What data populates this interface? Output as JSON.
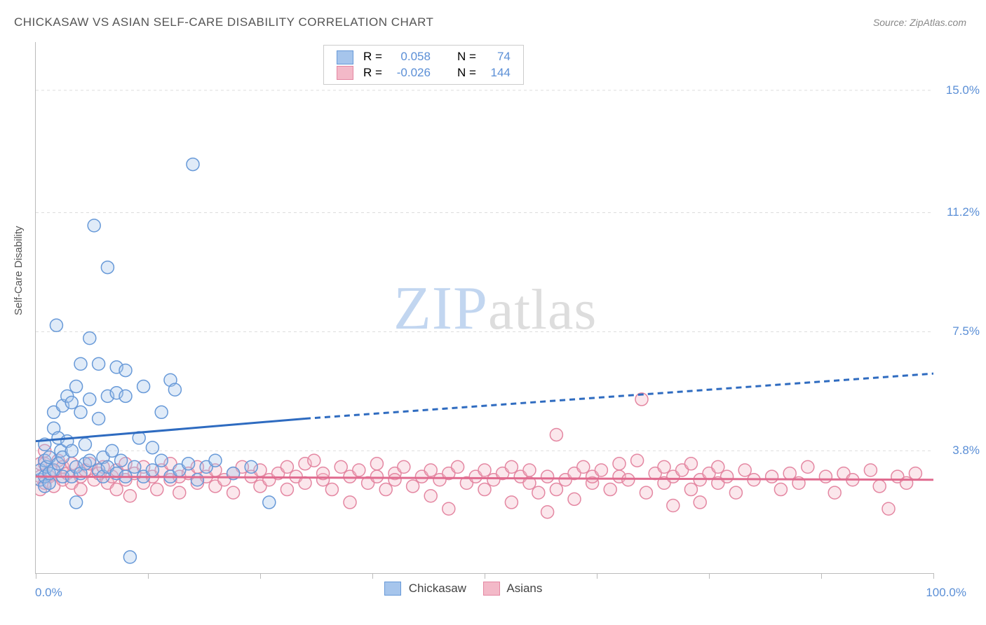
{
  "title": "CHICKASAW VS ASIAN SELF-CARE DISABILITY CORRELATION CHART",
  "source": "Source: ZipAtlas.com",
  "ylabel": "Self-Care Disability",
  "watermark": {
    "part1": "ZIP",
    "part2": "atlas"
  },
  "chart": {
    "type": "scatter",
    "background_color": "#ffffff",
    "grid_color": "#dddddd",
    "axis_color": "#bbbbbb",
    "tick_label_color": "#5b8fd6",
    "xlim": [
      0,
      100
    ],
    "ylim": [
      0,
      16.5
    ],
    "xticks": [
      0,
      12.5,
      25,
      37.5,
      50,
      62.5,
      75,
      87.5,
      100
    ],
    "xtick_labels": {
      "0": "0.0%",
      "100": "100.0%"
    },
    "ygrid": [
      3.8,
      7.5,
      11.2,
      15.0
    ],
    "ytick_labels": [
      "3.8%",
      "7.5%",
      "11.2%",
      "15.0%"
    ],
    "marker_radius": 9,
    "marker_stroke_width": 1.5,
    "marker_fill_opacity": 0.35,
    "series": [
      {
        "name": "Chickasaw",
        "label": "Chickasaw",
        "fill_color": "#a6c5ec",
        "stroke_color": "#6799d8",
        "R": "0.058",
        "N": "74",
        "trend": {
          "solid": {
            "x1": 0,
            "y1": 4.1,
            "x2": 30,
            "y2": 4.8
          },
          "dashed": {
            "x1": 30,
            "y1": 4.8,
            "x2": 100,
            "y2": 6.2
          },
          "color": "#2e6bc0",
          "width": 3,
          "dash": "8 6"
        },
        "points": [
          [
            0.5,
            2.9
          ],
          [
            0.5,
            3.2
          ],
          [
            1.0,
            2.7
          ],
          [
            1.0,
            3.0
          ],
          [
            1.0,
            3.5
          ],
          [
            1.0,
            4.0
          ],
          [
            1.2,
            3.3
          ],
          [
            1.5,
            2.8
          ],
          [
            1.5,
            3.1
          ],
          [
            1.5,
            3.6
          ],
          [
            2.0,
            3.2
          ],
          [
            2.0,
            4.5
          ],
          [
            2.0,
            5.0
          ],
          [
            2.3,
            7.7
          ],
          [
            2.5,
            3.4
          ],
          [
            2.5,
            4.2
          ],
          [
            2.8,
            3.8
          ],
          [
            3.0,
            3.0
          ],
          [
            3.0,
            3.6
          ],
          [
            3.0,
            5.2
          ],
          [
            3.5,
            4.1
          ],
          [
            3.5,
            5.5
          ],
          [
            4.0,
            3.0
          ],
          [
            4.0,
            3.8
          ],
          [
            4.0,
            5.3
          ],
          [
            4.5,
            2.2
          ],
          [
            4.5,
            3.3
          ],
          [
            4.5,
            5.8
          ],
          [
            5.0,
            3.1
          ],
          [
            5.0,
            5.0
          ],
          [
            5.0,
            6.5
          ],
          [
            5.5,
            3.4
          ],
          [
            5.5,
            4.0
          ],
          [
            6.0,
            3.5
          ],
          [
            6.0,
            5.4
          ],
          [
            6.0,
            7.3
          ],
          [
            6.5,
            10.8
          ],
          [
            7.0,
            3.2
          ],
          [
            7.0,
            4.8
          ],
          [
            7.0,
            6.5
          ],
          [
            7.5,
            3.0
          ],
          [
            7.5,
            3.6
          ],
          [
            8.0,
            3.3
          ],
          [
            8.0,
            5.5
          ],
          [
            8.0,
            9.5
          ],
          [
            8.5,
            3.8
          ],
          [
            9.0,
            3.1
          ],
          [
            9.0,
            5.6
          ],
          [
            9.0,
            6.4
          ],
          [
            9.5,
            3.5
          ],
          [
            10.0,
            3.0
          ],
          [
            10.0,
            5.5
          ],
          [
            10.0,
            6.3
          ],
          [
            10.5,
            0.5
          ],
          [
            11.0,
            3.3
          ],
          [
            11.5,
            4.2
          ],
          [
            12.0,
            3.0
          ],
          [
            12.0,
            5.8
          ],
          [
            13.0,
            3.2
          ],
          [
            13.0,
            3.9
          ],
          [
            14.0,
            3.5
          ],
          [
            14.0,
            5.0
          ],
          [
            15.0,
            3.0
          ],
          [
            15.0,
            6.0
          ],
          [
            15.5,
            5.7
          ],
          [
            16.0,
            3.2
          ],
          [
            17.0,
            3.4
          ],
          [
            17.5,
            12.7
          ],
          [
            18.0,
            2.9
          ],
          [
            19.0,
            3.3
          ],
          [
            20.0,
            3.5
          ],
          [
            22.0,
            3.1
          ],
          [
            24.0,
            3.3
          ],
          [
            26.0,
            2.2
          ]
        ]
      },
      {
        "name": "Asians",
        "label": "Asians",
        "fill_color": "#f3b9c8",
        "stroke_color": "#e487a2",
        "R": "-0.026",
        "N": "144",
        "trend": {
          "solid": {
            "x1": 0,
            "y1": 3.0,
            "x2": 100,
            "y2": 2.9
          },
          "color": "#e06b8f",
          "width": 3
        },
        "points": [
          [
            0.5,
            3.0
          ],
          [
            0.5,
            3.4
          ],
          [
            0.5,
            2.6
          ],
          [
            1.0,
            3.4
          ],
          [
            1.0,
            2.8
          ],
          [
            1.0,
            3.8
          ],
          [
            1.5,
            3.0
          ],
          [
            2.0,
            3.2
          ],
          [
            2.0,
            2.7
          ],
          [
            2.5,
            3.5
          ],
          [
            3.0,
            2.9
          ],
          [
            3.0,
            3.3
          ],
          [
            3.5,
            3.1
          ],
          [
            4.0,
            2.8
          ],
          [
            4.0,
            3.4
          ],
          [
            5.0,
            3.0
          ],
          [
            5.0,
            2.6
          ],
          [
            5.5,
            3.2
          ],
          [
            6.0,
            3.4
          ],
          [
            6.5,
            2.9
          ],
          [
            7.0,
            3.1
          ],
          [
            7.5,
            3.3
          ],
          [
            8.0,
            2.8
          ],
          [
            8.5,
            3.0
          ],
          [
            9.0,
            3.2
          ],
          [
            9.0,
            2.6
          ],
          [
            10.0,
            3.4
          ],
          [
            10.0,
            2.9
          ],
          [
            10.5,
            2.4
          ],
          [
            11.0,
            3.1
          ],
          [
            12.0,
            2.8
          ],
          [
            12.0,
            3.3
          ],
          [
            13.0,
            3.0
          ],
          [
            13.5,
            2.6
          ],
          [
            14.0,
            3.2
          ],
          [
            15.0,
            2.9
          ],
          [
            15.0,
            3.4
          ],
          [
            16.0,
            3.0
          ],
          [
            16.0,
            2.5
          ],
          [
            17.0,
            3.1
          ],
          [
            18.0,
            2.8
          ],
          [
            18.0,
            3.3
          ],
          [
            19.0,
            3.0
          ],
          [
            20.0,
            2.7
          ],
          [
            20.0,
            3.2
          ],
          [
            21.0,
            2.9
          ],
          [
            22.0,
            3.1
          ],
          [
            22.0,
            2.5
          ],
          [
            23.0,
            3.3
          ],
          [
            24.0,
            3.0
          ],
          [
            25.0,
            2.7
          ],
          [
            25.0,
            3.2
          ],
          [
            26.0,
            2.9
          ],
          [
            27.0,
            3.1
          ],
          [
            28.0,
            2.6
          ],
          [
            28.0,
            3.3
          ],
          [
            29.0,
            3.0
          ],
          [
            30.0,
            2.8
          ],
          [
            30.0,
            3.4
          ],
          [
            31.0,
            3.5
          ],
          [
            32.0,
            2.9
          ],
          [
            32.0,
            3.1
          ],
          [
            33.0,
            2.6
          ],
          [
            34.0,
            3.3
          ],
          [
            35.0,
            3.0
          ],
          [
            35.0,
            2.2
          ],
          [
            36.0,
            3.2
          ],
          [
            37.0,
            2.8
          ],
          [
            38.0,
            3.0
          ],
          [
            38.0,
            3.4
          ],
          [
            39.0,
            2.6
          ],
          [
            40.0,
            3.1
          ],
          [
            40.0,
            2.9
          ],
          [
            41.0,
            3.3
          ],
          [
            42.0,
            2.7
          ],
          [
            43.0,
            3.0
          ],
          [
            44.0,
            2.4
          ],
          [
            44.0,
            3.2
          ],
          [
            45.0,
            2.9
          ],
          [
            46.0,
            3.1
          ],
          [
            46.0,
            2.0
          ],
          [
            47.0,
            3.3
          ],
          [
            48.0,
            2.8
          ],
          [
            49.0,
            3.0
          ],
          [
            50.0,
            2.6
          ],
          [
            50.0,
            3.2
          ],
          [
            51.0,
            2.9
          ],
          [
            52.0,
            3.1
          ],
          [
            53.0,
            2.2
          ],
          [
            53.0,
            3.3
          ],
          [
            54.0,
            3.0
          ],
          [
            55.0,
            2.8
          ],
          [
            55.0,
            3.2
          ],
          [
            56.0,
            2.5
          ],
          [
            57.0,
            3.0
          ],
          [
            57.0,
            1.9
          ],
          [
            58.0,
            2.6
          ],
          [
            58.0,
            4.3
          ],
          [
            59.0,
            2.9
          ],
          [
            60.0,
            3.1
          ],
          [
            60.0,
            2.3
          ],
          [
            61.0,
            3.3
          ],
          [
            62.0,
            2.8
          ],
          [
            62.0,
            3.0
          ],
          [
            63.0,
            3.2
          ],
          [
            64.0,
            2.6
          ],
          [
            65.0,
            3.0
          ],
          [
            65.0,
            3.4
          ],
          [
            66.0,
            2.9
          ],
          [
            67.0,
            3.5
          ],
          [
            67.5,
            5.4
          ],
          [
            68.0,
            2.5
          ],
          [
            69.0,
            3.1
          ],
          [
            70.0,
            2.8
          ],
          [
            70.0,
            3.3
          ],
          [
            71.0,
            3.0
          ],
          [
            71.0,
            2.1
          ],
          [
            72.0,
            3.2
          ],
          [
            73.0,
            2.6
          ],
          [
            73.0,
            3.4
          ],
          [
            74.0,
            2.9
          ],
          [
            74.0,
            2.2
          ],
          [
            75.0,
            3.1
          ],
          [
            76.0,
            2.8
          ],
          [
            76.0,
            3.3
          ],
          [
            77.0,
            3.0
          ],
          [
            78.0,
            2.5
          ],
          [
            79.0,
            3.2
          ],
          [
            80.0,
            2.9
          ],
          [
            82.0,
            3.0
          ],
          [
            83.0,
            2.6
          ],
          [
            84.0,
            3.1
          ],
          [
            85.0,
            2.8
          ],
          [
            86.0,
            3.3
          ],
          [
            88.0,
            3.0
          ],
          [
            89.0,
            2.5
          ],
          [
            90.0,
            3.1
          ],
          [
            91.0,
            2.9
          ],
          [
            93.0,
            3.2
          ],
          [
            94.0,
            2.7
          ],
          [
            95.0,
            2.0
          ],
          [
            96.0,
            3.0
          ],
          [
            97.0,
            2.8
          ],
          [
            98.0,
            3.1
          ]
        ]
      }
    ]
  },
  "legend_box": {
    "r_label": "R =",
    "n_label": "N =",
    "text_color": "#444444",
    "value_color": "#5b8fd6"
  }
}
